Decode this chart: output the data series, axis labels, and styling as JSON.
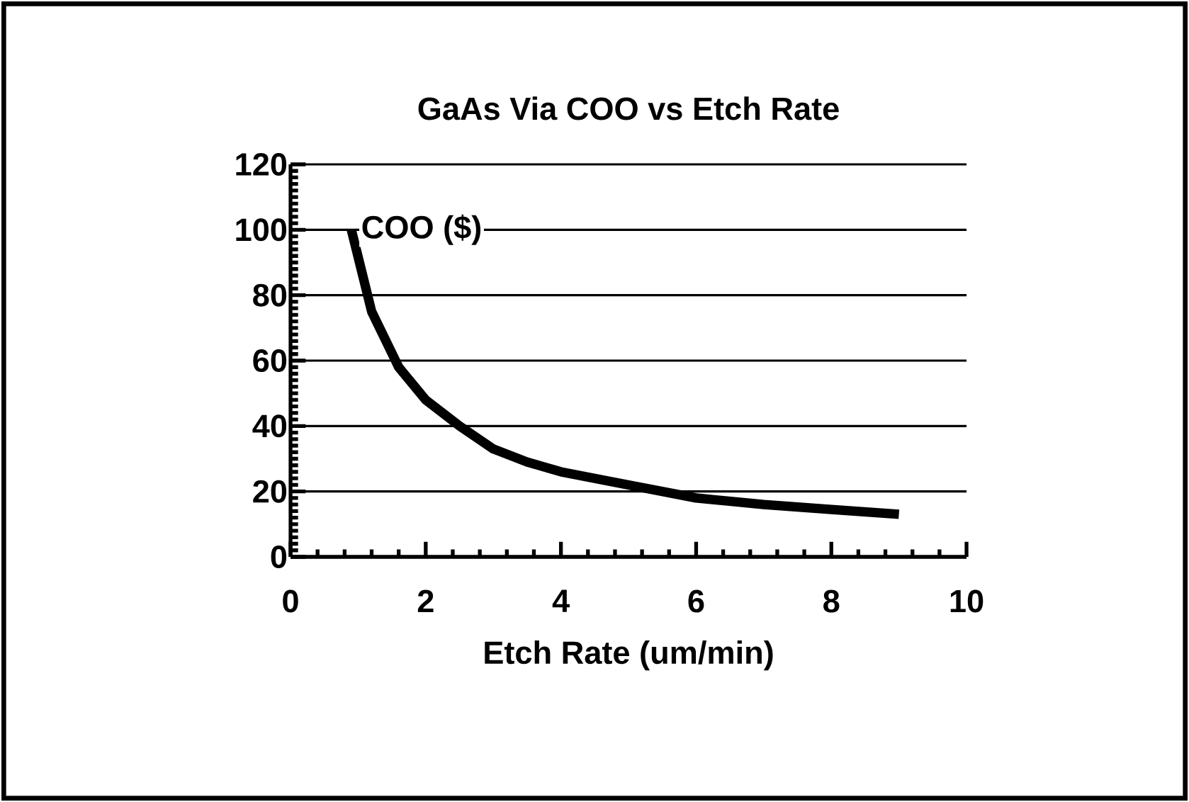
{
  "chart_data": {
    "type": "line",
    "title": "GaAs Via COO vs Etch Rate",
    "xlabel": "Etch Rate (um/min)",
    "series": [
      {
        "name": "COO ($)",
        "color": "#000000",
        "x": [
          0.9,
          1.2,
          1.6,
          2,
          2.5,
          3,
          3.5,
          4,
          5,
          6,
          7,
          8,
          9
        ],
        "values": [
          100,
          75,
          58,
          48,
          40,
          33,
          29,
          26,
          22,
          18,
          16,
          14.5,
          13
        ]
      }
    ],
    "xlim": [
      0,
      10
    ],
    "xticks": [
      0,
      2,
      4,
      6,
      8,
      10
    ],
    "ylim": [
      0,
      120
    ],
    "yticks": [
      0,
      20,
      40,
      60,
      80,
      100,
      120
    ],
    "grid": "y",
    "legend": false,
    "marker": "none",
    "line_style": "solid"
  }
}
